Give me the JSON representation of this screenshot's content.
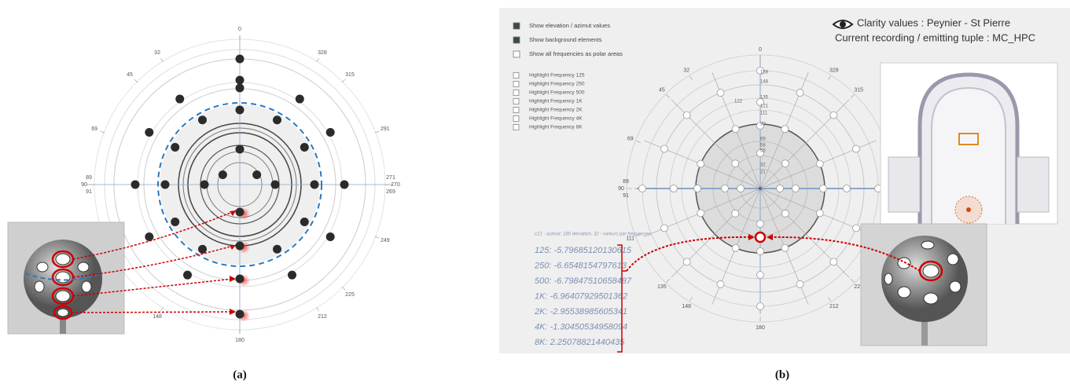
{
  "panel_a": {
    "azimuth_labels": [
      0,
      32,
      328,
      45,
      315,
      69,
      291,
      89,
      90,
      91,
      271,
      270,
      269,
      249,
      225,
      212,
      148,
      180
    ],
    "caption": "(a)"
  },
  "panel_b": {
    "options": [
      "Show elevation / azimut values",
      "Show background elements",
      "Show all frequencies as polar areas"
    ],
    "frequency_options": [
      "Highlight Frequency 125",
      "Highlight Frequency 250",
      "Highlight Frequency 500",
      "Highlight Frequency 1K",
      "Highlight Frequency 2K",
      "Highlight Frequency 4K",
      "Highlight Frequency 8K"
    ],
    "header": {
      "clarity": "Clarity values : Peynier - St Pierre",
      "tuple": "Current recording / emitting tuple : MC_HPC"
    },
    "azimuth_labels": [
      0,
      32,
      328,
      45,
      315,
      69,
      291,
      89,
      90,
      91,
      271,
      269,
      111,
      135,
      148,
      180,
      212,
      225
    ],
    "elevation_labels": [
      159,
      148,
      135,
      122,
      121,
      111,
      90,
      69,
      58,
      55,
      32,
      21
    ],
    "selection_info": "c21 - azimut: 180 elevation, 32 - valeurs par fréquences",
    "frequency_values": [
      "125: -5.79685120130615",
      "250: -6.6548154797613",
      "500: -6.79847510658487",
      "1K: -6.96407929501362",
      "2K: -2.95538985605341",
      "4K: -1.30450534958094",
      "8K: 2.25078821440435"
    ],
    "caption": "(b)"
  }
}
